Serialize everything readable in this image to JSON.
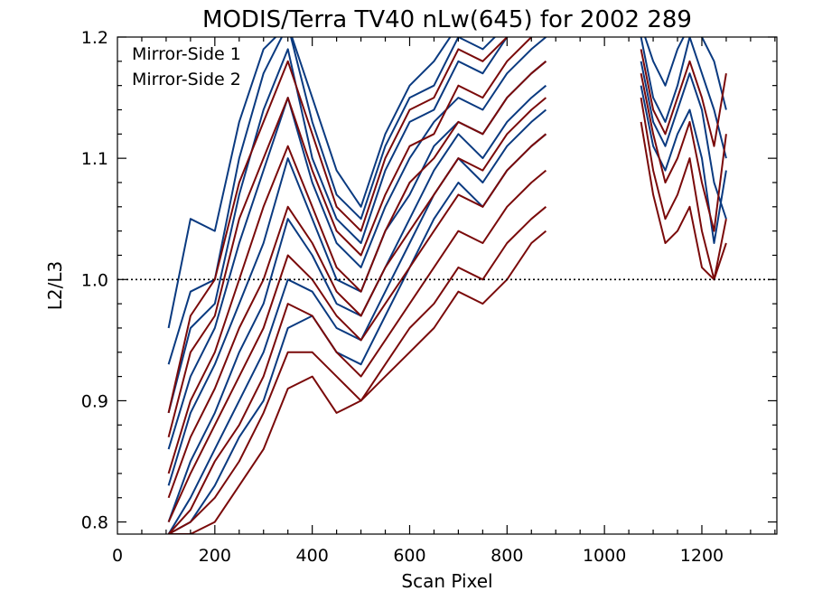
{
  "chart_data": {
    "type": "line",
    "title": "MODIS/Terra TV40 nLw(645) for 2002 289",
    "xlabel": "Scan Pixel",
    "ylabel": "L2/L3",
    "xlim": [
      0,
      1354
    ],
    "ylim": [
      0.79,
      1.2
    ],
    "xticks": [
      0,
      200,
      400,
      600,
      800,
      1000,
      1200
    ],
    "yticks": [
      0.8,
      0.9,
      1.0,
      1.1,
      1.2
    ],
    "reference_line": 1.0,
    "legend_placement": "top-left",
    "colors": {
      "mirror_side_1": "#0a3a80",
      "mirror_side_2": "#7a0a0a"
    },
    "series_groups": [
      {
        "name": "Mirror-Side 1",
        "color": "#0a3a80",
        "lines": [
          {
            "x": [
              105,
              150,
              200,
              250,
              300,
              350,
              400,
              450,
              500,
              550,
              600,
              650,
              700,
              750,
              800,
              850,
              880
            ],
            "y": [
              0.96,
              1.05,
              1.04,
              1.13,
              1.19,
              1.21,
              1.15,
              1.09,
              1.06,
              1.12,
              1.16,
              1.18,
              1.21,
              1.2,
              1.21,
              1.2,
              1.21
            ]
          },
          {
            "x": [
              105,
              150,
              200,
              250,
              300,
              350,
              400,
              450,
              500,
              550,
              600,
              650,
              700,
              750,
              800,
              850,
              880
            ],
            "y": [
              0.93,
              0.99,
              1.0,
              1.1,
              1.17,
              1.21,
              1.13,
              1.07,
              1.05,
              1.11,
              1.15,
              1.16,
              1.2,
              1.19,
              1.21,
              1.21,
              1.21
            ]
          },
          {
            "x": [
              105,
              150,
              200,
              250,
              300,
              350,
              400,
              450,
              500,
              550,
              600,
              650,
              700,
              750,
              800,
              850,
              880
            ],
            "y": [
              0.89,
              0.96,
              0.98,
              1.07,
              1.14,
              1.19,
              1.1,
              1.05,
              1.03,
              1.09,
              1.13,
              1.14,
              1.18,
              1.17,
              1.2,
              1.21,
              1.21
            ]
          },
          {
            "x": [
              105,
              150,
              200,
              250,
              300,
              350,
              400,
              450,
              500,
              550,
              600,
              650,
              700,
              750,
              800,
              850,
              880
            ],
            "y": [
              0.86,
              0.92,
              0.96,
              1.03,
              1.09,
              1.15,
              1.08,
              1.03,
              1.01,
              1.06,
              1.1,
              1.13,
              1.15,
              1.14,
              1.17,
              1.19,
              1.2
            ]
          },
          {
            "x": [
              105,
              150,
              200,
              250,
              300,
              350,
              400,
              450,
              500,
              550,
              600,
              650,
              700,
              750,
              800,
              850,
              880
            ],
            "y": [
              0.83,
              0.89,
              0.93,
              0.98,
              1.03,
              1.1,
              1.05,
              1.0,
              0.99,
              1.04,
              1.07,
              1.11,
              1.13,
              1.12,
              1.15,
              1.17,
              1.18
            ]
          },
          {
            "x": [
              105,
              150,
              200,
              250,
              300,
              350,
              400,
              450,
              500,
              550,
              600,
              650,
              700,
              750,
              800,
              850,
              880
            ],
            "y": [
              0.8,
              0.85,
              0.89,
              0.94,
              0.98,
              1.05,
              1.02,
              0.98,
              0.97,
              1.01,
              1.05,
              1.09,
              1.12,
              1.1,
              1.13,
              1.15,
              1.16
            ]
          },
          {
            "x": [
              105,
              150,
              200,
              250,
              300,
              350,
              400,
              450,
              500,
              550,
              600,
              650,
              700,
              750,
              800,
              850,
              880
            ],
            "y": [
              0.79,
              0.82,
              0.86,
              0.9,
              0.94,
              1.0,
              0.99,
              0.96,
              0.95,
              0.99,
              1.03,
              1.07,
              1.1,
              1.08,
              1.11,
              1.13,
              1.14
            ]
          },
          {
            "x": [
              105,
              150,
              200,
              250,
              300,
              350,
              400,
              450,
              500,
              550,
              600,
              650,
              700,
              750,
              800,
              850,
              880
            ],
            "y": [
              0.79,
              0.8,
              0.83,
              0.87,
              0.9,
              0.96,
              0.97,
              0.94,
              0.93,
              0.97,
              1.01,
              1.05,
              1.08,
              1.06,
              1.09,
              1.11,
              1.12
            ]
          },
          {
            "x": [
              1075,
              1100,
              1125,
              1150,
              1175,
              1200,
              1225,
              1250
            ],
            "y": [
              1.21,
              1.18,
              1.16,
              1.19,
              1.21,
              1.2,
              1.18,
              1.14
            ]
          },
          {
            "x": [
              1075,
              1100,
              1125,
              1150,
              1175,
              1200,
              1225,
              1250
            ],
            "y": [
              1.2,
              1.15,
              1.13,
              1.16,
              1.2,
              1.17,
              1.14,
              1.1
            ]
          },
          {
            "x": [
              1075,
              1100,
              1125,
              1150,
              1175,
              1200,
              1225,
              1250
            ],
            "y": [
              1.18,
              1.13,
              1.11,
              1.14,
              1.17,
              1.14,
              1.08,
              1.05
            ]
          },
          {
            "x": [
              1075,
              1100,
              1125,
              1150,
              1175,
              1200,
              1225,
              1250
            ],
            "y": [
              1.16,
              1.11,
              1.09,
              1.12,
              1.14,
              1.1,
              1.03,
              1.09
            ]
          }
        ]
      },
      {
        "name": "Mirror-Side 2",
        "color": "#7a0a0a",
        "lines": [
          {
            "x": [
              105,
              150,
              200,
              250,
              300,
              350,
              400,
              450,
              500,
              550,
              600,
              650,
              700,
              750,
              800,
              850,
              880
            ],
            "y": [
              0.89,
              0.97,
              1.0,
              1.08,
              1.13,
              1.18,
              1.12,
              1.06,
              1.04,
              1.1,
              1.14,
              1.15,
              1.19,
              1.18,
              1.2,
              1.21,
              1.21
            ]
          },
          {
            "x": [
              105,
              150,
              200,
              250,
              300,
              350,
              400,
              450,
              500,
              550,
              600,
              650,
              700,
              750,
              800,
              850,
              880
            ],
            "y": [
              0.87,
              0.94,
              0.97,
              1.05,
              1.1,
              1.15,
              1.09,
              1.04,
              1.02,
              1.07,
              1.11,
              1.12,
              1.16,
              1.15,
              1.18,
              1.2,
              1.21
            ]
          },
          {
            "x": [
              105,
              150,
              200,
              250,
              300,
              350,
              400,
              450,
              500,
              550,
              600,
              650,
              700,
              750,
              800,
              850,
              880
            ],
            "y": [
              0.84,
              0.9,
              0.94,
              1.0,
              1.06,
              1.11,
              1.06,
              1.01,
              0.99,
              1.04,
              1.08,
              1.1,
              1.13,
              1.12,
              1.15,
              1.17,
              1.18
            ]
          },
          {
            "x": [
              105,
              150,
              200,
              250,
              300,
              350,
              400,
              450,
              500,
              550,
              600,
              650,
              700,
              750,
              800,
              850,
              880
            ],
            "y": [
              0.82,
              0.87,
              0.91,
              0.96,
              1.0,
              1.06,
              1.03,
              0.99,
              0.97,
              1.01,
              1.04,
              1.07,
              1.1,
              1.09,
              1.12,
              1.14,
              1.15
            ]
          },
          {
            "x": [
              105,
              150,
              200,
              250,
              300,
              350,
              400,
              450,
              500,
              550,
              600,
              650,
              700,
              750,
              800,
              850,
              880
            ],
            "y": [
              0.8,
              0.84,
              0.88,
              0.92,
              0.96,
              1.02,
              1.0,
              0.97,
              0.95,
              0.98,
              1.01,
              1.04,
              1.07,
              1.06,
              1.09,
              1.11,
              1.12
            ]
          },
          {
            "x": [
              105,
              150,
              200,
              250,
              300,
              350,
              400,
              450,
              500,
              550,
              600,
              650,
              700,
              750,
              800,
              850,
              880
            ],
            "y": [
              0.79,
              0.81,
              0.85,
              0.88,
              0.92,
              0.98,
              0.97,
              0.94,
              0.92,
              0.95,
              0.98,
              1.01,
              1.04,
              1.03,
              1.06,
              1.08,
              1.09
            ]
          },
          {
            "x": [
              105,
              150,
              200,
              250,
              300,
              350,
              400,
              450,
              500,
              550,
              600,
              650,
              700,
              750,
              800,
              850,
              880
            ],
            "y": [
              0.79,
              0.8,
              0.82,
              0.85,
              0.89,
              0.94,
              0.94,
              0.92,
              0.9,
              0.93,
              0.96,
              0.98,
              1.01,
              1.0,
              1.03,
              1.05,
              1.06
            ]
          },
          {
            "x": [
              105,
              150,
              200,
              250,
              300,
              350,
              400,
              450,
              500,
              550,
              600,
              650,
              700,
              750,
              800,
              850,
              880
            ],
            "y": [
              0.79,
              0.79,
              0.8,
              0.83,
              0.86,
              0.91,
              0.92,
              0.89,
              0.9,
              0.92,
              0.94,
              0.96,
              0.99,
              0.98,
              1.0,
              1.03,
              1.04
            ]
          },
          {
            "x": [
              1075,
              1100,
              1125,
              1150,
              1175,
              1200,
              1225,
              1250
            ],
            "y": [
              1.19,
              1.14,
              1.12,
              1.15,
              1.18,
              1.15,
              1.11,
              1.17
            ]
          },
          {
            "x": [
              1075,
              1100,
              1125,
              1150,
              1175,
              1200,
              1225,
              1250
            ],
            "y": [
              1.17,
              1.12,
              1.08,
              1.1,
              1.13,
              1.08,
              1.04,
              1.12
            ]
          },
          {
            "x": [
              1075,
              1100,
              1125,
              1150,
              1175,
              1200,
              1225,
              1250
            ],
            "y": [
              1.15,
              1.09,
              1.05,
              1.07,
              1.1,
              1.04,
              1.0,
              1.05
            ]
          },
          {
            "x": [
              1075,
              1100,
              1125,
              1150,
              1175,
              1200,
              1225,
              1250
            ],
            "y": [
              1.13,
              1.07,
              1.03,
              1.04,
              1.06,
              1.01,
              1.0,
              1.03
            ]
          }
        ]
      }
    ]
  }
}
